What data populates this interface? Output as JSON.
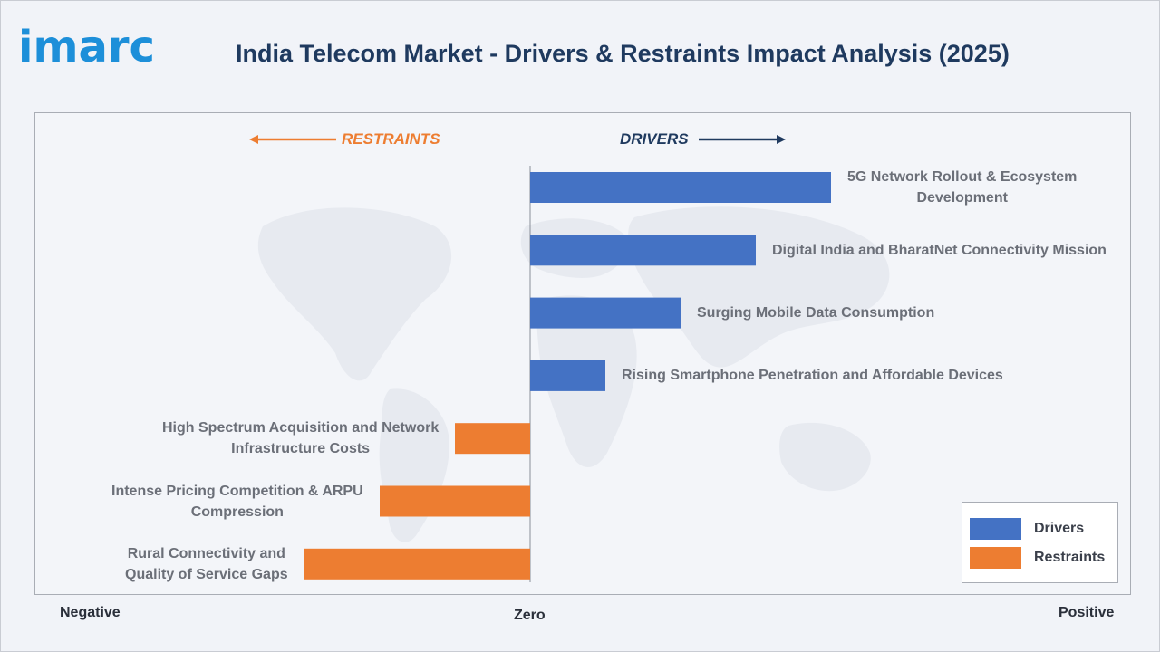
{
  "header": {
    "logo_text": "imarc",
    "title": "India Telecom Market - Drivers & Restraints Impact Analysis (2025)"
  },
  "colors": {
    "driver": "#4472c4",
    "restraint": "#ed7d31",
    "logo": "#1d8fd9",
    "title": "#1f3a5f"
  },
  "direction_labels": {
    "restraints": "RESTRAINTS",
    "drivers": "DRIVERS"
  },
  "axis_words": {
    "negative": "Negative",
    "zero": "Zero",
    "positive": "Positive"
  },
  "legend": [
    {
      "label": "Drivers",
      "color": "#4472c4"
    },
    {
      "label": "Restraints",
      "color": "#ed7d31"
    }
  ],
  "chart_data": {
    "type": "bar",
    "orientation": "horizontal",
    "title": "India Telecom Market - Drivers & Restraints Impact Analysis (2025)",
    "xlabel": "",
    "ylabel": "",
    "xlim": [
      -3,
      4
    ],
    "grid": false,
    "legend_position": "bottom-right",
    "bars": [
      {
        "label_lines": [
          "5G Network Rollout & Ecosystem",
          "Development"
        ],
        "value": 4,
        "kind": "driver"
      },
      {
        "label_lines": [
          "Digital India and BharatNet Connectivity Mission"
        ],
        "value": 3,
        "kind": "driver"
      },
      {
        "label_lines": [
          "Surging Mobile Data Consumption"
        ],
        "value": 2,
        "kind": "driver"
      },
      {
        "label_lines": [
          "Rising Smartphone Penetration and Affordable Devices"
        ],
        "value": 1,
        "kind": "driver"
      },
      {
        "label_lines": [
          "High Spectrum Acquisition and Network",
          "Infrastructure Costs"
        ],
        "value": -1,
        "kind": "restraint"
      },
      {
        "label_lines": [
          "Intense Pricing Competition & ARPU",
          "Compression"
        ],
        "value": -2,
        "kind": "restraint"
      },
      {
        "label_lines": [
          "Rural Connectivity and",
          "Quality of Service Gaps"
        ],
        "value": -3,
        "kind": "restraint"
      }
    ]
  }
}
